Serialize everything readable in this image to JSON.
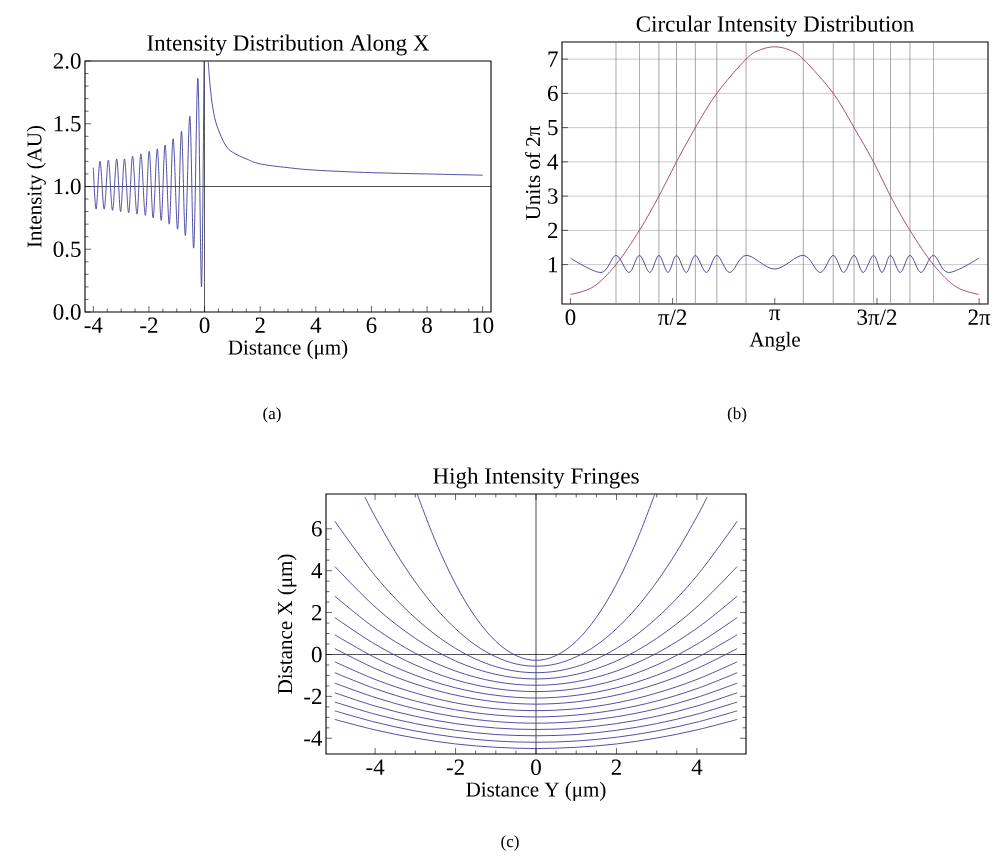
{
  "chart_data": [
    {
      "type": "line",
      "title": "Intensity Distribution Along X",
      "xlabel": "Distance (μm)",
      "ylabel": "Intensity (AU)",
      "xlim": [
        -4.3,
        10.3
      ],
      "ylim": [
        0,
        2
      ],
      "xticks": [
        -4,
        -2,
        0,
        2,
        4,
        6,
        8,
        10
      ],
      "yticks": [
        {
          "value": 0,
          "label": "0.0"
        },
        0.5,
        {
          "value": 1,
          "label": "1.0"
        },
        1.5,
        {
          "value": 2,
          "label": "2.0"
        }
      ],
      "ref_lines": [
        {
          "axis": "y",
          "value": 1,
          "color": "#000000"
        },
        {
          "axis": "x",
          "value": 0,
          "color": "#000000"
        }
      ],
      "annotations": [
        "(a)"
      ],
      "series": [
        {
          "color": "#3d3d99",
          "x": [
            -4,
            -3.9,
            -3.76,
            -3.61,
            -3.46,
            -3.31,
            -3.16,
            -3.02,
            -2.88,
            -2.73,
            -2.59,
            -2.43,
            -2.29,
            -2.13,
            -1.99,
            -1.85,
            -1.7,
            -1.56,
            -1.42,
            -1.27,
            -1.13,
            -0.97,
            -0.83,
            -0.69,
            -0.53,
            -0.39,
            -0.24,
            -0.11,
            -0.02,
            0.05,
            0.13,
            0.2,
            0.3,
            0.45,
            0.75,
            1.03,
            1.5,
            2,
            3,
            4,
            6,
            8,
            10
          ],
          "values": [
            1.15,
            0.82,
            1.2,
            0.82,
            1.21,
            0.81,
            1.22,
            0.8,
            1.22,
            0.79,
            1.24,
            0.78,
            1.26,
            0.77,
            1.28,
            0.75,
            1.3,
            0.73,
            1.33,
            0.7,
            1.38,
            0.66,
            1.44,
            0.61,
            1.56,
            0.51,
            1.86,
            0.2,
            2.0,
            null,
            2.0,
            1.8,
            1.62,
            1.48,
            1.33,
            1.27,
            1.22,
            1.18,
            1.15,
            1.13,
            1.11,
            1.1,
            1.09
          ]
        }
      ]
    },
    {
      "type": "line",
      "title": "Circular Intensity Distribution",
      "xlabel": "Angle",
      "ylabel": "Units of 2π",
      "xlim": [
        -0.13,
        6.42
      ],
      "ylim": [
        -0.15,
        7.5
      ],
      "xticks": [
        0,
        {
          "value": 1.5708,
          "label": "π/2"
        },
        {
          "value": 3.1416,
          "label": "π"
        },
        {
          "value": 4.7124,
          "label": "3π/2"
        },
        {
          "value": 6.2832,
          "label": "2π"
        }
      ],
      "yticks": [
        1,
        2,
        3,
        4,
        5,
        6,
        7
      ],
      "grid": "y",
      "ref_lines": [
        {
          "axis": "x",
          "value": 0.7,
          "color": "#808080"
        },
        {
          "axis": "x",
          "value": 1.06,
          "color": "#808080"
        },
        {
          "axis": "x",
          "value": 1.36,
          "color": "#808080"
        },
        {
          "axis": "x",
          "value": 1.63,
          "color": "#808080"
        },
        {
          "axis": "x",
          "value": 1.92,
          "color": "#808080"
        },
        {
          "axis": "x",
          "value": 2.25,
          "color": "#808080"
        },
        {
          "axis": "x",
          "value": 2.7,
          "color": "#808080"
        },
        {
          "axis": "x",
          "value": 3.58,
          "color": "#808080"
        },
        {
          "axis": "x",
          "value": 4.04,
          "color": "#808080"
        },
        {
          "axis": "x",
          "value": 4.36,
          "color": "#808080"
        },
        {
          "axis": "x",
          "value": 4.66,
          "color": "#808080"
        },
        {
          "axis": "x",
          "value": 4.92,
          "color": "#808080"
        },
        {
          "axis": "x",
          "value": 5.22,
          "color": "#808080"
        },
        {
          "axis": "x",
          "value": 5.58,
          "color": "#808080"
        }
      ],
      "annotations": [
        "(b)"
      ],
      "series": [
        {
          "color": "#993d70",
          "x": [
            0,
            0.35,
            0.7,
            1.06,
            1.36,
            1.63,
            1.92,
            2.25,
            2.7,
            2.92,
            3.14,
            3.36,
            3.58,
            4.04,
            4.36,
            4.66,
            4.92,
            5.22,
            5.58,
            5.93,
            6.28
          ],
          "values": [
            0.13,
            0.35,
            1,
            2,
            3,
            4,
            5,
            6,
            7,
            7.27,
            7.36,
            7.27,
            7,
            6,
            5,
            4,
            3,
            2,
            1,
            0.35,
            0.13
          ]
        },
        {
          "color": "#3d3d99",
          "x": [
            0,
            0.47,
            0.7,
            0.9,
            1.06,
            1.22,
            1.36,
            1.5,
            1.63,
            1.78,
            1.92,
            2.09,
            2.25,
            2.45,
            2.7,
            3.14,
            3.58,
            3.84,
            4.04,
            4.2,
            4.36,
            4.5,
            4.66,
            4.79,
            4.92,
            5.07,
            5.22,
            5.39,
            5.58,
            5.81,
            6.28
          ],
          "values": [
            1.19,
            0.77,
            1.27,
            0.77,
            1.27,
            0.77,
            1.27,
            0.77,
            1.27,
            0.77,
            1.27,
            0.77,
            1.27,
            0.77,
            1.27,
            0.87,
            1.27,
            0.77,
            1.27,
            0.77,
            1.27,
            0.77,
            1.27,
            0.77,
            1.27,
            0.77,
            1.27,
            0.77,
            1.27,
            0.77,
            1.19
          ]
        }
      ]
    },
    {
      "type": "line",
      "title": "High Intensity Fringes",
      "xlabel": "Distance Y (μm)",
      "ylabel": "Distance X (μm)",
      "xlim": [
        -5.22,
        5.22
      ],
      "ylim": [
        -4.75,
        7.66
      ],
      "xticks": [
        -4,
        -2,
        0,
        2,
        4
      ],
      "yticks": [
        -4,
        -2,
        0,
        2,
        4,
        6
      ],
      "ref_lines": [
        {
          "axis": "y",
          "value": 0,
          "color": "#000000"
        },
        {
          "axis": "x",
          "value": 0,
          "color": "#000000"
        }
      ],
      "annotations": [
        "(c)"
      ],
      "series": [
        {
          "color": "#3d3d99",
          "x": [
            -2.95,
            -2.5,
            -2,
            -1.5,
            -1,
            -0.5,
            0,
            0.5,
            1,
            1.5,
            2,
            2.5,
            2.95
          ],
          "values": [
            7.64,
            5.41,
            3.36,
            1.77,
            0.63,
            -0.05,
            -0.28,
            -0.05,
            0.63,
            1.77,
            3.36,
            5.41,
            7.64
          ]
        },
        {
          "color": "#3d3d99",
          "x": [
            -4.25,
            -4,
            -3.5,
            -3,
            -2.5,
            -2,
            -1.5,
            -1,
            -0.5,
            0,
            0.5,
            1,
            1.5,
            2,
            2.5,
            3,
            3.5,
            4,
            4.25
          ],
          "values": [
            7.5,
            6.58,
            4.91,
            3.46,
            2.23,
            1.23,
            0.44,
            -0.11,
            -0.45,
            -0.56,
            -0.45,
            -0.11,
            0.44,
            1.23,
            2.23,
            3.46,
            4.91,
            6.58,
            7.5
          ]
        },
        {
          "color": "#3d3d99",
          "x": [
            -5,
            -4,
            -3,
            -2,
            -1,
            0,
            1,
            2,
            3,
            4,
            5
          ],
          "values": [
            6.36,
            3.76,
            1.74,
            0.29,
            -0.58,
            -0.87,
            -0.58,
            0.29,
            1.74,
            3.76,
            6.36
          ]
        },
        {
          "color": "#3d3d99",
          "x": [
            -5,
            -4,
            -3,
            -2,
            -1,
            0,
            1,
            2,
            3,
            4,
            5
          ],
          "values": [
            4.2,
            2.27,
            0.77,
            -0.31,
            -0.95,
            -1.17,
            -0.95,
            -0.31,
            0.77,
            2.27,
            4.2
          ]
        },
        {
          "color": "#3d3d99",
          "x": [
            -5,
            -4,
            -3,
            -2,
            -1,
            0,
            1,
            2,
            3,
            4,
            5
          ],
          "values": [
            2.78,
            1.25,
            0.06,
            -0.79,
            -1.3,
            -1.47,
            -1.3,
            -0.79,
            0.06,
            1.25,
            2.78
          ]
        },
        {
          "color": "#3d3d99",
          "x": [
            -5,
            -4,
            -3,
            -2,
            -1,
            0,
            1,
            2,
            3,
            4,
            5
          ],
          "values": [
            1.76,
            0.49,
            -0.5,
            -1.21,
            -1.63,
            -1.77,
            -1.63,
            -1.21,
            -0.5,
            0.49,
            1.76
          ]
        },
        {
          "color": "#3d3d99",
          "x": [
            -5,
            -4,
            -3,
            -2,
            -1,
            0,
            1,
            2,
            3,
            4,
            5
          ],
          "values": [
            0.94,
            -0.15,
            -0.99,
            -1.59,
            -1.95,
            -2.08,
            -1.95,
            -1.59,
            -0.99,
            -0.15,
            0.94
          ]
        },
        {
          "color": "#3d3d99",
          "x": [
            -5,
            -4,
            -3,
            -2,
            -1,
            0,
            1,
            2,
            3,
            4,
            5
          ],
          "values": [
            0.28,
            -0.67,
            -1.41,
            -1.94,
            -2.26,
            -2.37,
            -2.26,
            -1.94,
            -1.41,
            -0.67,
            0.28
          ]
        },
        {
          "color": "#3d3d99",
          "x": [
            -5,
            -4,
            -3,
            -2,
            -1,
            0,
            1,
            2,
            3,
            4,
            5
          ],
          "values": [
            -0.35,
            -1.19,
            -1.84,
            -2.31,
            -2.59,
            -2.68,
            -2.59,
            -2.31,
            -1.84,
            -1.19,
            -0.35
          ]
        },
        {
          "color": "#3d3d99",
          "x": [
            -5,
            -4,
            -3,
            -2,
            -1,
            0,
            1,
            2,
            3,
            4,
            5
          ],
          "values": [
            -0.87,
            -1.63,
            -2.22,
            -2.64,
            -2.89,
            -2.98,
            -2.89,
            -2.64,
            -2.22,
            -1.63,
            -0.87
          ]
        },
        {
          "color": "#3d3d99",
          "x": [
            -5,
            -4,
            -3,
            -2,
            -1,
            0,
            1,
            2,
            3,
            4,
            5
          ],
          "values": [
            -1.37,
            -2.05,
            -2.59,
            -2.97,
            -3.2,
            -3.28,
            -3.2,
            -2.97,
            -2.59,
            -2.05,
            -1.37
          ]
        },
        {
          "color": "#3d3d99",
          "x": [
            -5,
            -4,
            -3,
            -2,
            -1,
            0,
            1,
            2,
            3,
            4,
            5
          ],
          "values": [
            -1.83,
            -2.46,
            -2.95,
            -3.3,
            -3.51,
            -3.58,
            -3.51,
            -3.3,
            -2.95,
            -2.46,
            -1.83
          ]
        },
        {
          "color": "#3d3d99",
          "x": [
            -5,
            -4,
            -3,
            -2,
            -1,
            0,
            1,
            2,
            3,
            4,
            5
          ],
          "values": [
            -2.27,
            -2.85,
            -3.3,
            -3.62,
            -3.82,
            -3.88,
            -3.82,
            -3.62,
            -3.3,
            -2.85,
            -2.27
          ]
        },
        {
          "color": "#3d3d99",
          "x": [
            -5,
            -4,
            -3,
            -2,
            -1,
            0,
            1,
            2,
            3,
            4,
            5
          ],
          "values": [
            -2.69,
            -3.23,
            -3.65,
            -3.95,
            -4.13,
            -4.19,
            -4.13,
            -3.95,
            -3.65,
            -3.23,
            -2.69
          ]
        },
        {
          "color": "#3d3d99",
          "x": [
            -5,
            -4,
            -3,
            -2,
            -1,
            0,
            1,
            2,
            3,
            4,
            5
          ],
          "values": [
            -3.1,
            -3.6,
            -3.99,
            -4.27,
            -4.43,
            -4.49,
            -4.43,
            -4.27,
            -3.99,
            -3.6,
            -3.1
          ]
        }
      ]
    }
  ]
}
